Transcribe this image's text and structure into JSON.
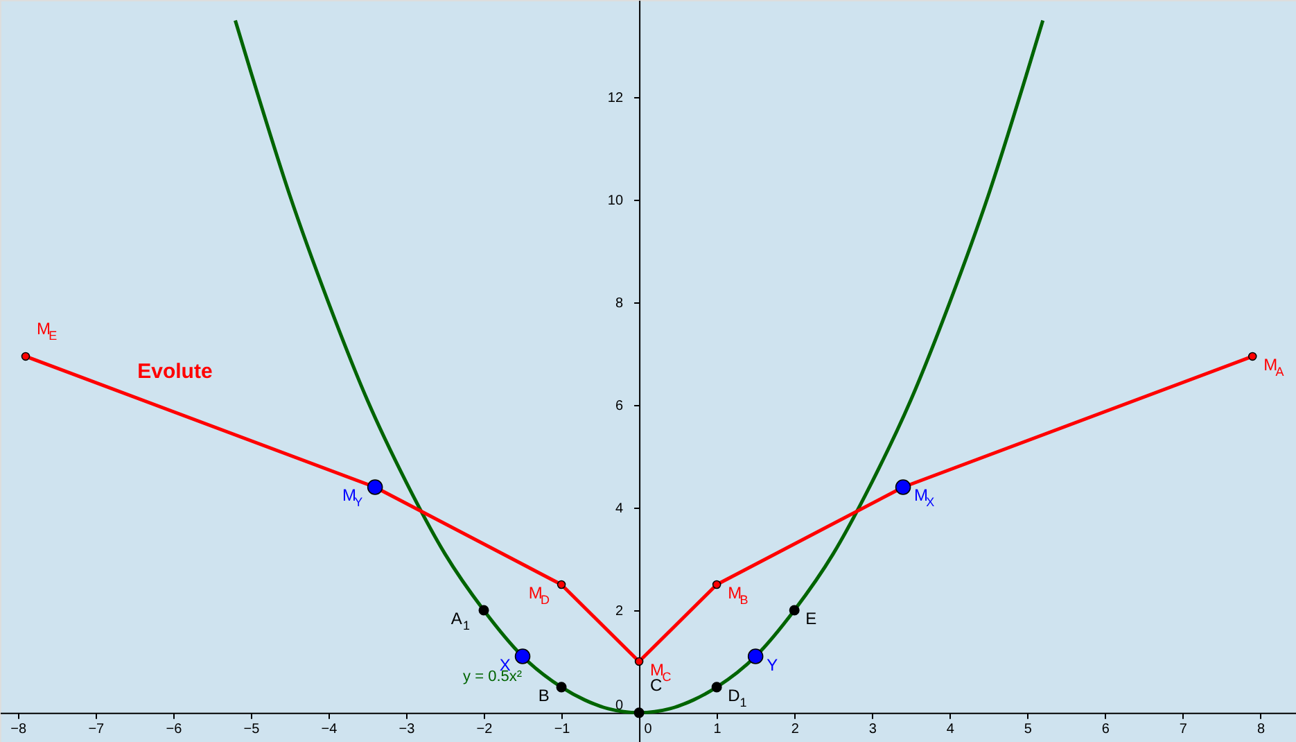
{
  "chart_data": {
    "type": "line",
    "xlim": [
      -8.23,
      8.46
    ],
    "ylim": [
      -0.57,
      13.9
    ],
    "xticks": [
      -8,
      -7,
      -6,
      -5,
      -4,
      -3,
      -2,
      -1,
      0,
      1,
      2,
      3,
      4,
      5,
      6,
      7,
      8
    ],
    "yticks": [
      0,
      2,
      4,
      6,
      8,
      10,
      12
    ],
    "series": [
      {
        "type": "line",
        "color": "#006400",
        "x": [
          -5.2,
          -5,
          -4.5,
          -4,
          -3.5,
          -3,
          -2.5,
          -2,
          -1.5,
          -1,
          -0.7,
          -0.4,
          0,
          0.4,
          0.7,
          1,
          1.5,
          2,
          2.5,
          3,
          3.5,
          4,
          4.5,
          5,
          5.2
        ],
        "values": [
          13.5,
          12.5,
          10.1,
          8,
          6.1,
          4.5,
          3.1,
          2,
          1.1,
          0.5,
          0.25,
          0.08,
          0,
          0.08,
          0.25,
          0.5,
          1.1,
          2,
          3.1,
          4.5,
          6.1,
          8,
          10.1,
          12.5,
          13.5
        ]
      },
      {
        "type": "line",
        "color": "#ff0000",
        "x": [
          -7.9,
          -3.4,
          -1,
          0,
          1,
          3.4,
          7.9
        ],
        "values": [
          6.95,
          4.4,
          2.5,
          1,
          2.5,
          4.4,
          6.95
        ]
      },
      {
        "type": "scatter",
        "marker": "circle",
        "color": "#ff0000",
        "x": [
          -7.9,
          -1,
          0,
          1,
          7.9
        ],
        "values": [
          6.95,
          2.5,
          1,
          2.5,
          6.95
        ]
      },
      {
        "type": "scatter",
        "marker": "circle",
        "color": "#000000",
        "x": [
          -2,
          -1,
          0,
          1,
          2
        ],
        "values": [
          2,
          0.5,
          0,
          0.5,
          2
        ]
      },
      {
        "type": "scatter",
        "marker": "circle",
        "color": "#0000ff",
        "x": [
          -3.4,
          -1.5,
          1.5,
          3.4
        ],
        "values": [
          4.4,
          1.1,
          1.1,
          4.4
        ]
      }
    ],
    "annotations": [
      {
        "text": "M$_{E}$",
        "x": -7.9,
        "y": 6.95
      },
      {
        "text": "M$_{A}$",
        "x": 7.9,
        "y": 6.95
      },
      {
        "text": "M$_{D}$",
        "x": -1,
        "y": 2.5
      },
      {
        "text": "M$_{B}$",
        "x": 1,
        "y": 2.5
      },
      {
        "text": "M$_{C}$",
        "x": 0,
        "y": 1
      },
      {
        "text": "M$_{Y}$",
        "x": -3.4,
        "y": 4.4
      },
      {
        "text": "M$_{X}$",
        "x": 3.4,
        "y": 4.4
      },
      {
        "text": "X",
        "x": -1.5,
        "y": 1.1
      },
      {
        "text": "Y",
        "x": 1.5,
        "y": 1.1
      },
      {
        "text": "A$_{1}$",
        "x": -2,
        "y": 2
      },
      {
        "text": "B",
        "x": -1,
        "y": 0.5
      },
      {
        "text": "C",
        "x": 0,
        "y": 0
      },
      {
        "text": "D$_{1}$",
        "x": 1,
        "y": 0.5
      },
      {
        "text": "E",
        "x": 2,
        "y": 2
      },
      "Evolute",
      "y = 0.5x²"
    ]
  }
}
